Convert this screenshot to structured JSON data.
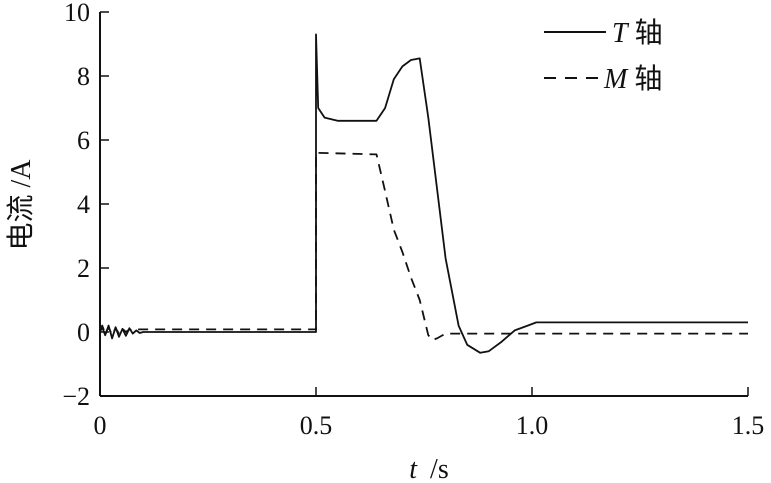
{
  "chart_data": {
    "type": "line",
    "xlabel_var": "t",
    "xlabel_unit": "/s",
    "ylabel": "电流 /A",
    "xlim": [
      0,
      1.5
    ],
    "ylim": [
      -2,
      10
    ],
    "x_ticks": [
      0,
      0.5,
      1.0,
      1.5
    ],
    "x_tick_labels": [
      "0",
      "0.5",
      "1.0",
      "1.5"
    ],
    "y_ticks": [
      -2,
      0,
      2,
      4,
      6,
      8,
      10
    ],
    "y_tick_labels": [
      "−2",
      "0",
      "2",
      "4",
      "6",
      "8",
      "10"
    ],
    "grid": false,
    "legend_position": "top-right",
    "series": [
      {
        "name": "T轴",
        "name_var": "T",
        "name_suffix": "轴",
        "style": "solid",
        "color": "#111111",
        "x": [
          0,
          0.005,
          0.012,
          0.02,
          0.028,
          0.036,
          0.044,
          0.052,
          0.06,
          0.068,
          0.076,
          0.084,
          0.092,
          0.1,
          0.5,
          0.5,
          0.505,
          0.52,
          0.55,
          0.64,
          0.66,
          0.68,
          0.7,
          0.72,
          0.74,
          0.76,
          0.8,
          0.83,
          0.85,
          0.88,
          0.9,
          0.93,
          0.96,
          0.99,
          1.01,
          1.5
        ],
        "y": [
          0,
          0.15,
          -0.1,
          0.2,
          -0.2,
          0.15,
          -0.15,
          0.1,
          -0.12,
          0.12,
          -0.05,
          0.05,
          -0.03,
          0,
          0,
          9.3,
          7.0,
          6.7,
          6.6,
          6.6,
          7.0,
          7.9,
          8.3,
          8.5,
          8.55,
          6.7,
          2.3,
          0.2,
          -0.4,
          -0.65,
          -0.6,
          -0.3,
          0.05,
          0.2,
          0.3,
          0.3
        ]
      },
      {
        "name": "M轴",
        "name_var": "M",
        "name_suffix": "轴",
        "style": "dashed",
        "color": "#111111",
        "x": [
          0,
          0.005,
          0.012,
          0.02,
          0.028,
          0.036,
          0.044,
          0.052,
          0.06,
          0.068,
          0.076,
          0.084,
          0.1,
          0.5,
          0.5,
          0.64,
          0.66,
          0.68,
          0.7,
          0.72,
          0.74,
          0.76,
          0.77,
          0.78,
          0.8,
          0.83,
          1.5
        ],
        "y": [
          0.05,
          0.2,
          -0.05,
          0.15,
          -0.1,
          0.12,
          -0.05,
          0.1,
          0.0,
          0.08,
          0.05,
          0.08,
          0.08,
          0.08,
          5.6,
          5.55,
          4.4,
          3.2,
          2.5,
          1.7,
          1.0,
          -0.1,
          -0.25,
          -0.2,
          -0.05,
          -0.05,
          -0.05
        ]
      }
    ]
  }
}
